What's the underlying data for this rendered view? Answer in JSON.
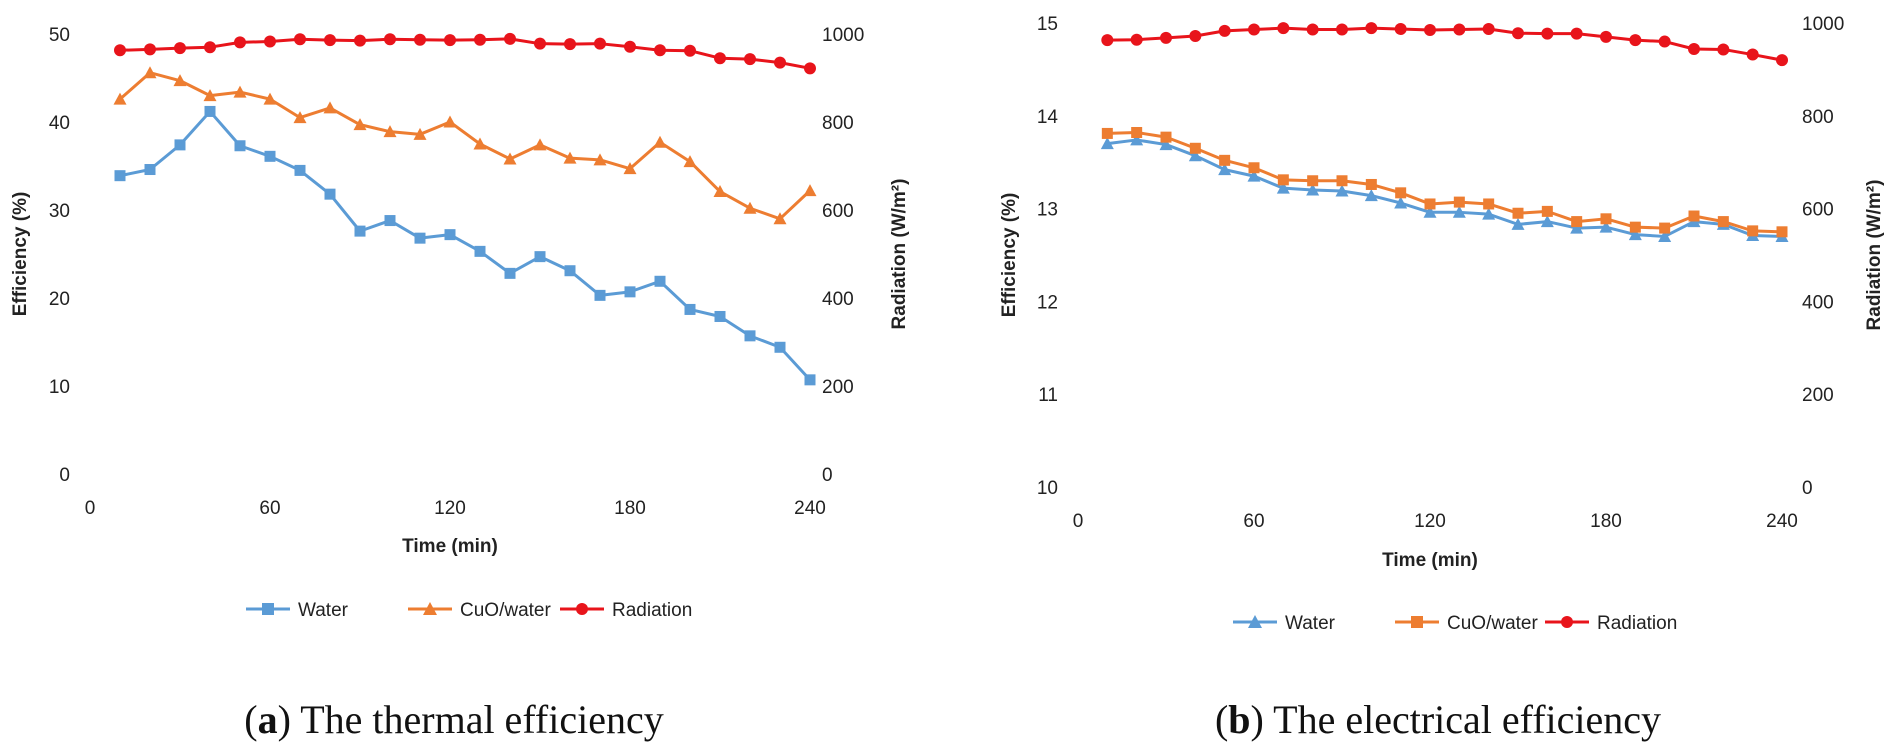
{
  "chart_data": [
    {
      "type": "line",
      "panel_label": "a",
      "caption": "The thermal efficiency",
      "xlabel": "Time (min)",
      "ylabel": "Efficiency (%)",
      "y2label": "Radiation (W/m²)",
      "xlim": [
        0,
        240
      ],
      "ylim": [
        0,
        50
      ],
      "y2lim": [
        0,
        1000
      ],
      "xticks": [
        "0",
        "60",
        "120",
        "180",
        "240"
      ],
      "yticks": [
        "0",
        "10",
        "20",
        "30",
        "40",
        "50"
      ],
      "y2ticks": [
        "0",
        "200",
        "400",
        "600",
        "800",
        "1000"
      ],
      "grid": false,
      "legend": "bottom",
      "x": [
        10,
        20,
        30,
        40,
        50,
        60,
        70,
        80,
        90,
        100,
        110,
        120,
        130,
        140,
        150,
        160,
        170,
        180,
        190,
        200,
        210,
        220,
        230,
        240
      ],
      "series": [
        {
          "name": "Water",
          "axis": "left",
          "color": "#5B9BD5",
          "marker": "square",
          "values": [
            33.9,
            34.6,
            37.4,
            41.2,
            37.3,
            36.1,
            34.5,
            31.8,
            27.6,
            28.8,
            26.8,
            27.2,
            25.3,
            22.8,
            24.7,
            23.1,
            20.3,
            20.7,
            21.9,
            18.7,
            17.9,
            15.7,
            14.4,
            10.7
          ]
        },
        {
          "name": "CuO/water",
          "axis": "left",
          "color": "#ED7D31",
          "marker": "triangle",
          "values": [
            42.6,
            45.6,
            44.7,
            43.0,
            43.4,
            42.6,
            40.5,
            41.6,
            39.7,
            38.9,
            38.6,
            40.0,
            37.5,
            35.8,
            37.4,
            35.9,
            35.7,
            34.7,
            37.7,
            35.5,
            32.1,
            30.2,
            29.0,
            32.2
          ]
        },
        {
          "name": "Radiation",
          "axis": "right",
          "color": "#E8141B",
          "marker": "circle",
          "values": [
            963,
            965,
            968,
            970,
            981,
            983,
            988,
            986,
            985,
            988,
            987,
            986,
            987,
            989,
            978,
            977,
            978,
            971,
            963,
            962,
            945,
            943,
            935,
            922
          ]
        }
      ]
    },
    {
      "type": "line",
      "panel_label": "b",
      "caption": "The electrical efficiency",
      "xlabel": "Time (min)",
      "ylabel": "Efficiency (%)",
      "y2label": "Radiation (W/m²)",
      "xlim": [
        0,
        240
      ],
      "ylim": [
        10,
        15
      ],
      "y2lim": [
        0,
        1000
      ],
      "xticks": [
        "0",
        "60",
        "120",
        "180",
        "240"
      ],
      "yticks": [
        "10",
        "11",
        "12",
        "13",
        "14",
        "15"
      ],
      "y2ticks": [
        "0",
        "200",
        "400",
        "600",
        "800",
        "1000"
      ],
      "grid": false,
      "legend": "bottom",
      "x": [
        10,
        20,
        30,
        40,
        50,
        60,
        70,
        80,
        90,
        100,
        110,
        120,
        130,
        140,
        150,
        160,
        170,
        180,
        190,
        200,
        210,
        220,
        230,
        240
      ],
      "series": [
        {
          "name": "Water",
          "axis": "left",
          "color": "#5B9BD5",
          "marker": "triangle",
          "values": [
            13.7,
            13.74,
            13.69,
            13.57,
            13.42,
            13.35,
            13.22,
            13.2,
            13.19,
            13.14,
            13.06,
            12.96,
            12.96,
            12.94,
            12.83,
            12.86,
            12.79,
            12.8,
            12.72,
            12.7,
            12.86,
            12.83,
            12.71,
            12.7
          ]
        },
        {
          "name": "CuO/water",
          "axis": "left",
          "color": "#ED7D31",
          "marker": "square",
          "values": [
            13.81,
            13.82,
            13.77,
            13.65,
            13.52,
            13.44,
            13.31,
            13.3,
            13.3,
            13.26,
            13.17,
            13.05,
            13.07,
            13.05,
            12.95,
            12.97,
            12.86,
            12.89,
            12.8,
            12.79,
            12.92,
            12.86,
            12.76,
            12.75
          ]
        },
        {
          "name": "Radiation",
          "axis": "right",
          "color": "#E8141B",
          "marker": "circle",
          "values": [
            963,
            964,
            968,
            972,
            983,
            986,
            989,
            986,
            986,
            989,
            987,
            985,
            986,
            987,
            978,
            977,
            977,
            970,
            963,
            960,
            944,
            943,
            932,
            920
          ]
        }
      ]
    }
  ]
}
